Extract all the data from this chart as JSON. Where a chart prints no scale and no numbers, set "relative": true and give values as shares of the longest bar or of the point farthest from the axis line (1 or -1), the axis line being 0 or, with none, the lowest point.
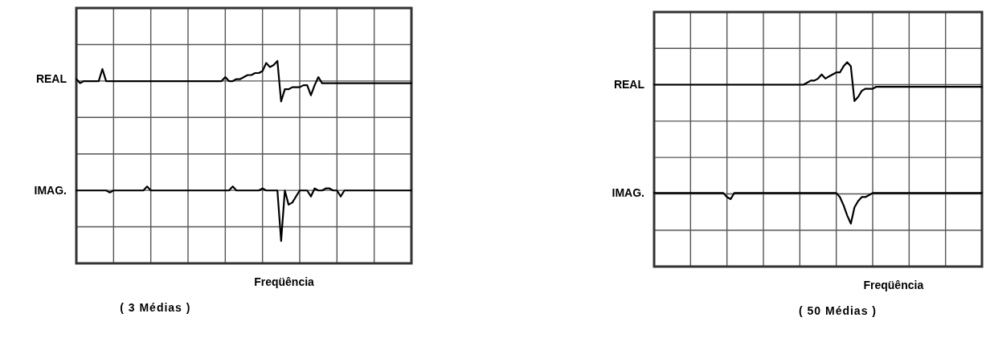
{
  "chart_data": [
    {
      "type": "line",
      "relative": true,
      "grid": true,
      "xlabel": "Freqüência",
      "annotations": [
        "( 3 Médias )"
      ],
      "categories": [
        null,
        null,
        null,
        null,
        null,
        null,
        null,
        null,
        null,
        null,
        null,
        null,
        null,
        null,
        null,
        null,
        null,
        null,
        null,
        null,
        null,
        null,
        null,
        null,
        null,
        null,
        null,
        null,
        null,
        null,
        null,
        null,
        null,
        null,
        null,
        null,
        null,
        null,
        null,
        null,
        null,
        null,
        null,
        null,
        null,
        null,
        null,
        null,
        null,
        null,
        null,
        null,
        null,
        null,
        null,
        null,
        null,
        null,
        null,
        null,
        null,
        null,
        null,
        null,
        null,
        null,
        null,
        null,
        null,
        null,
        null,
        null,
        null,
        null,
        null,
        null,
        null,
        null,
        null,
        null,
        null,
        null,
        null,
        null,
        null,
        null,
        null,
        null,
        null,
        null,
        null
      ],
      "series": [
        {
          "name": "REAL",
          "color": "#000000",
          "values": [
            0.91,
            0.89,
            0.9,
            0.9,
            0.9,
            0.9,
            0.9,
            0.96,
            0.9,
            0.9,
            0.9,
            0.9,
            0.9,
            0.9,
            0.9,
            0.9,
            0.9,
            0.9,
            0.9,
            0.9,
            0.9,
            0.9,
            0.9,
            0.9,
            0.9,
            0.9,
            0.9,
            0.9,
            0.9,
            0.9,
            0.9,
            0.9,
            0.9,
            0.9,
            0.9,
            0.9,
            0.9,
            0.9,
            0.9,
            0.9,
            0.92,
            0.9,
            0.9,
            0.91,
            0.91,
            0.92,
            0.93,
            0.93,
            0.94,
            0.94,
            0.95,
            0.99,
            0.97,
            0.98,
            1,
            0.8,
            0.86,
            0.86,
            0.87,
            0.87,
            0.87,
            0.88,
            0.88,
            0.83,
            0.88,
            0.92,
            0.89,
            0.89,
            0.89,
            0.89,
            0.89,
            0.89,
            0.89,
            0.89,
            0.89,
            0.89,
            0.89,
            0.89,
            0.89,
            0.89,
            0.89,
            0.89,
            0.89,
            0.89,
            0.89,
            0.89,
            0.89,
            0.89,
            0.89,
            0.89,
            0.89
          ]
        },
        {
          "name": "IMAG.",
          "color": "#000000",
          "values": [
            0.36,
            0.36,
            0.36,
            0.36,
            0.36,
            0.36,
            0.36,
            0.36,
            0.36,
            0.35,
            0.36,
            0.36,
            0.36,
            0.36,
            0.36,
            0.36,
            0.36,
            0.36,
            0.36,
            0.38,
            0.36,
            0.36,
            0.36,
            0.36,
            0.36,
            0.36,
            0.36,
            0.36,
            0.36,
            0.36,
            0.36,
            0.36,
            0.36,
            0.36,
            0.36,
            0.36,
            0.36,
            0.36,
            0.36,
            0.36,
            0.36,
            0.36,
            0.38,
            0.36,
            0.36,
            0.36,
            0.36,
            0.36,
            0.36,
            0.36,
            0.37,
            0.36,
            0.36,
            0.36,
            0.36,
            0.11,
            0.36,
            0.29,
            0.3,
            0.33,
            0.36,
            0.36,
            0.36,
            0.33,
            0.37,
            0.36,
            0.36,
            0.37,
            0.37,
            0.36,
            0.36,
            0.33,
            0.36,
            0.36,
            0.36,
            0.36,
            0.36,
            0.36,
            0.36,
            0.36,
            0.36,
            0.36,
            0.36,
            0.36,
            0.36,
            0.36,
            0.36,
            0.36,
            0.36,
            0.36,
            0.36
          ]
        }
      ]
    },
    {
      "type": "line",
      "relative": true,
      "grid": true,
      "xlabel": "Freqüência",
      "annotations": [
        "( 50 Médias )"
      ],
      "categories": [
        null,
        null,
        null,
        null,
        null,
        null,
        null,
        null,
        null,
        null,
        null,
        null,
        null,
        null,
        null,
        null,
        null,
        null,
        null,
        null,
        null,
        null,
        null,
        null,
        null,
        null,
        null,
        null,
        null,
        null,
        null,
        null,
        null,
        null,
        null,
        null,
        null,
        null,
        null,
        null,
        null,
        null,
        null,
        null,
        null,
        null,
        null,
        null,
        null,
        null,
        null,
        null,
        null,
        null,
        null,
        null,
        null,
        null,
        null,
        null,
        null,
        null,
        null,
        null,
        null,
        null,
        null,
        null,
        null,
        null,
        null,
        null,
        null,
        null,
        null,
        null,
        null,
        null,
        null,
        null,
        null,
        null,
        null,
        null,
        null,
        null,
        null,
        null,
        null,
        null,
        null
      ],
      "series": [
        {
          "name": "REAL",
          "color": "#000000",
          "values": [
            0.89,
            0.89,
            0.89,
            0.89,
            0.89,
            0.89,
            0.89,
            0.89,
            0.89,
            0.89,
            0.89,
            0.89,
            0.89,
            0.89,
            0.89,
            0.89,
            0.89,
            0.89,
            0.89,
            0.89,
            0.89,
            0.89,
            0.89,
            0.89,
            0.89,
            0.89,
            0.89,
            0.89,
            0.89,
            0.89,
            0.89,
            0.89,
            0.89,
            0.89,
            0.89,
            0.89,
            0.89,
            0.89,
            0.89,
            0.89,
            0.89,
            0.89,
            0.9,
            0.91,
            0.91,
            0.92,
            0.94,
            0.92,
            0.93,
            0.94,
            0.95,
            0.95,
            0.98,
            1,
            0.98,
            0.81,
            0.83,
            0.86,
            0.87,
            0.87,
            0.87,
            0.88,
            0.88,
            0.88,
            0.88,
            0.88,
            0.88,
            0.88,
            0.88,
            0.88,
            0.88,
            0.88,
            0.88,
            0.88,
            0.88,
            0.88,
            0.88,
            0.88,
            0.88,
            0.88,
            0.88,
            0.88,
            0.88,
            0.88,
            0.88,
            0.88,
            0.88,
            0.88,
            0.88,
            0.88,
            0.88
          ]
        },
        {
          "name": "IMAG.",
          "color": "#000000",
          "values": [
            0.36,
            0.36,
            0.36,
            0.36,
            0.36,
            0.36,
            0.36,
            0.36,
            0.36,
            0.36,
            0.36,
            0.36,
            0.36,
            0.36,
            0.36,
            0.36,
            0.36,
            0.36,
            0.36,
            0.36,
            0.34,
            0.33,
            0.36,
            0.36,
            0.36,
            0.36,
            0.36,
            0.36,
            0.36,
            0.36,
            0.36,
            0.36,
            0.36,
            0.36,
            0.36,
            0.36,
            0.36,
            0.36,
            0.36,
            0.36,
            0.36,
            0.36,
            0.36,
            0.36,
            0.36,
            0.36,
            0.36,
            0.36,
            0.36,
            0.36,
            0.36,
            0.34,
            0.3,
            0.25,
            0.21,
            0.29,
            0.32,
            0.34,
            0.34,
            0.35,
            0.36,
            0.36,
            0.36,
            0.36,
            0.36,
            0.36,
            0.36,
            0.36,
            0.36,
            0.36,
            0.36,
            0.36,
            0.36,
            0.36,
            0.36,
            0.36,
            0.36,
            0.36,
            0.36,
            0.36,
            0.36,
            0.36,
            0.36,
            0.36,
            0.36,
            0.36,
            0.36,
            0.36,
            0.36,
            0.36,
            0.36
          ]
        }
      ]
    }
  ]
}
